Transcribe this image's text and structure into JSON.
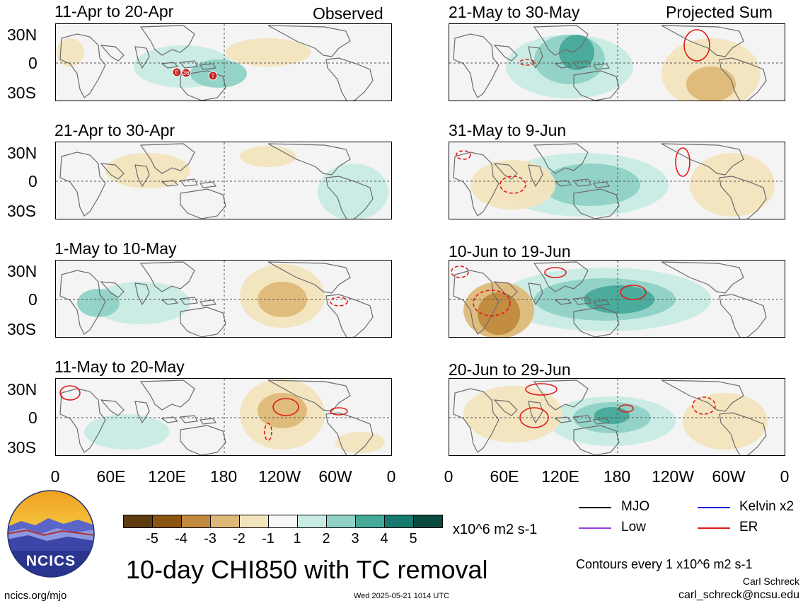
{
  "header": {
    "observed_label": "Observed",
    "projected_label": "Projected Sum"
  },
  "panels": [
    {
      "title": "11-Apr to 20-Apr"
    },
    {
      "title": "21-Apr to 30-Apr"
    },
    {
      "title": "1-May to 10-May"
    },
    {
      "title": "11-May to 20-May"
    },
    {
      "title": "21-May to 30-May"
    },
    {
      "title": "31-May to 9-Jun"
    },
    {
      "title": "10-Jun to 19-Jun"
    },
    {
      "title": "20-Jun to 29-Jun"
    }
  ],
  "axes": {
    "lat_labels": [
      "30N",
      "0",
      "30S"
    ],
    "lon_labels": [
      "0",
      "60E",
      "120E",
      "180",
      "120W",
      "60W",
      "0"
    ]
  },
  "colorbar": {
    "colors": [
      "#5e3c0f",
      "#8a5413",
      "#c08a3e",
      "#ddb978",
      "#f2e4bd",
      "#f7f7f7",
      "#c8ebe3",
      "#8fd2c5",
      "#47a99a",
      "#177a6e",
      "#0b4a3f"
    ],
    "tick_labels": [
      "-5",
      "-4",
      "-3",
      "-2",
      "-1",
      "1",
      "2",
      "3",
      "4",
      "5"
    ],
    "units": "x10^6 m2 s-1"
  },
  "legend": {
    "items": [
      {
        "label": "MJO",
        "color": "#000000"
      },
      {
        "label": "Kelvin x2",
        "color": "#1a1adf"
      },
      {
        "label": "Low",
        "color": "#9a3de0"
      },
      {
        "label": "ER",
        "color": "#e01a1a"
      }
    ],
    "contour_note": "Contours every 1 x10^6 m2 s-1"
  },
  "footer": {
    "main_title": "10-day CHI850 with TC removal",
    "org_logo_text": "NCICS",
    "website": "ncics.org/mjo",
    "timestamp": "Wed 2025-05-21 1014 UTC",
    "author": "Carl Schreck",
    "email": "carl_schreck@ncsu.edu"
  },
  "tc_markers": [
    "E",
    "36",
    "T"
  ]
}
